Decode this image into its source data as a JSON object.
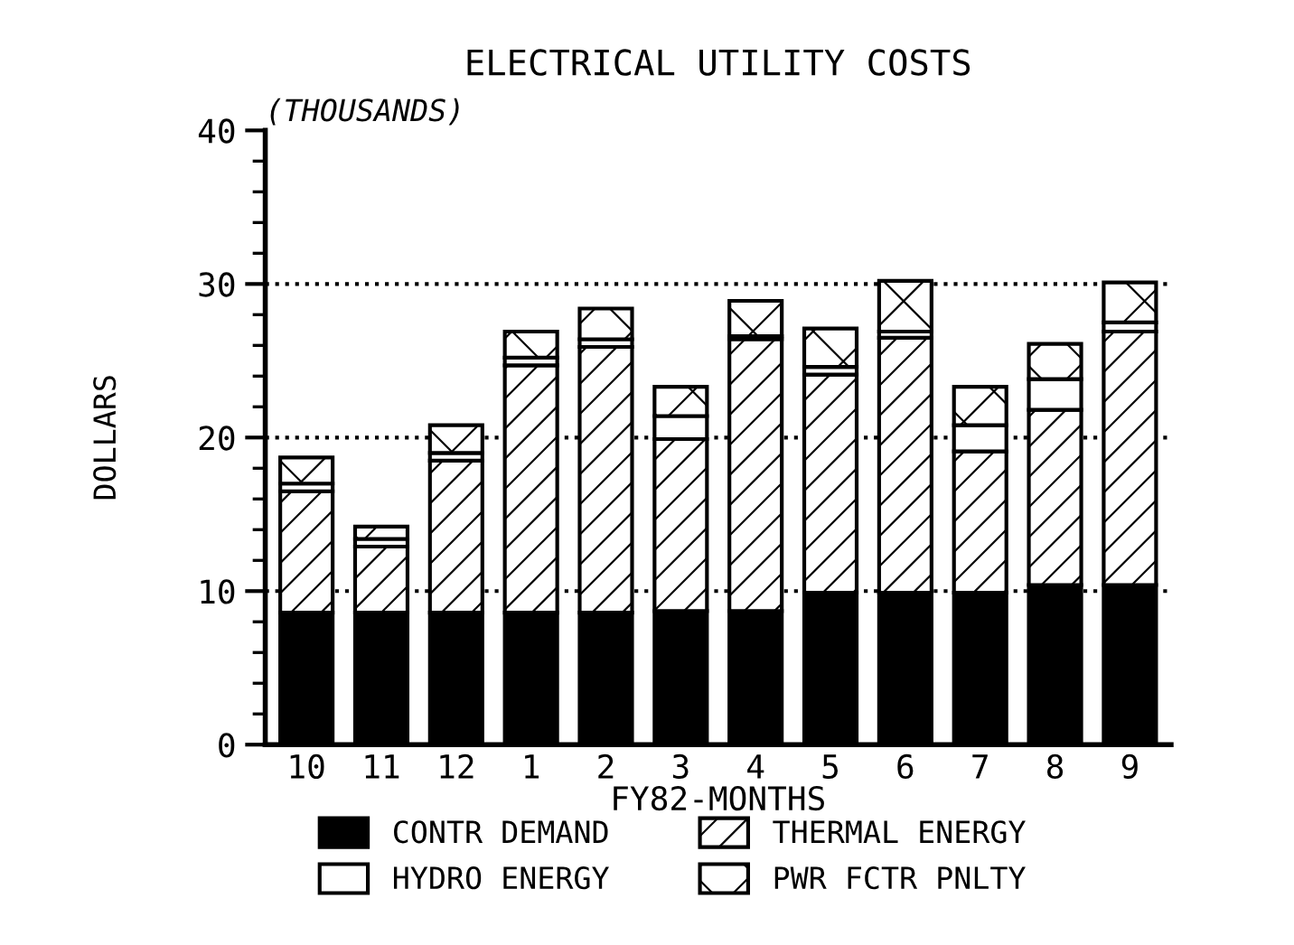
{
  "chart_data": {
    "type": "bar",
    "title": "ELECTRICAL UTILITY COSTS",
    "xlabel": "FY82-MONTHS",
    "ylabel": "DOLLARS",
    "annotations": [
      "(THOUSANDS)"
    ],
    "categories": [
      "10",
      "11",
      "12",
      "1",
      "2",
      "3",
      "4",
      "5",
      "6",
      "7",
      "8",
      "9"
    ],
    "stacked": true,
    "series": [
      {
        "name": "CONTR DEMAND",
        "color": "#000000",
        "values": [
          8.6,
          8.6,
          8.6,
          8.6,
          8.6,
          8.7,
          8.7,
          9.9,
          9.9,
          9.9,
          10.4,
          10.4
        ]
      },
      {
        "name": "THERMAL ENERGY",
        "color": "#000000",
        "values": [
          7.9,
          4.3,
          9.9,
          16.1,
          17.3,
          11.2,
          17.7,
          14.2,
          16.6,
          9.2,
          11.4,
          16.5
        ]
      },
      {
        "name": "HYDRO ENERGY",
        "color": "#ffffff",
        "values": [
          0.5,
          0.5,
          0.5,
          0.5,
          0.5,
          1.5,
          0.2,
          0.5,
          0.4,
          1.7,
          2.0,
          0.6
        ]
      },
      {
        "name": "PWR FCTR PNLTY",
        "color": "#000000",
        "values": [
          1.7,
          0.8,
          1.8,
          1.7,
          2.0,
          1.9,
          2.3,
          2.5,
          3.3,
          2.5,
          2.3,
          2.6
        ]
      }
    ],
    "ylim": [
      0,
      40
    ],
    "yticks": [
      0,
      10,
      20,
      30,
      40
    ],
    "grid": "y",
    "legend": "bottom"
  }
}
